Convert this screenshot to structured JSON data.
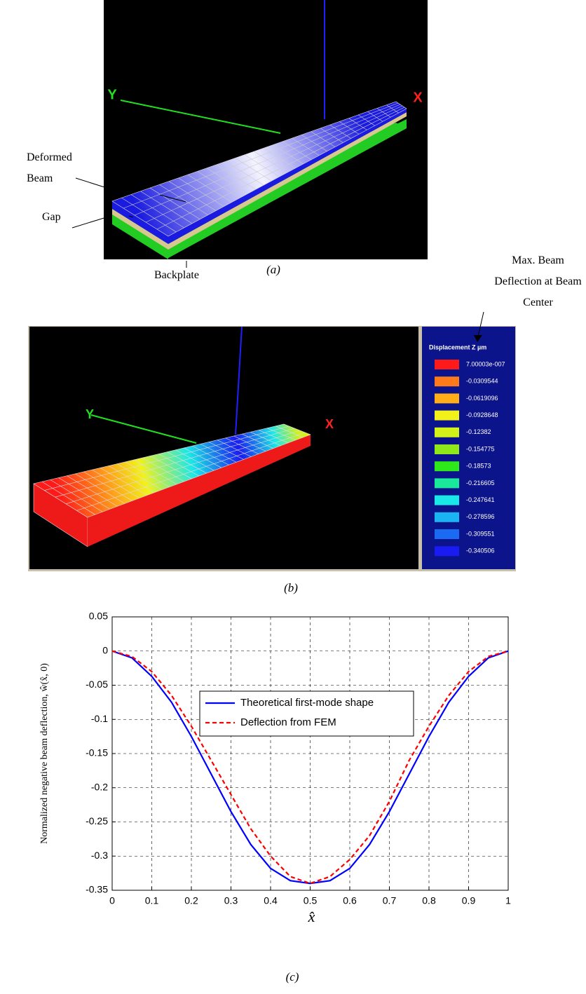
{
  "panel_a": {
    "axis_y": "Y",
    "axis_x": "X",
    "label_beam": "Deformed Beam",
    "label_gap": "Gap",
    "label_backplate": "Backplate",
    "caption": "(a)"
  },
  "panel_b": {
    "annotation": "Max. Beam Deflection at Beam Center",
    "axis_y": "Y",
    "axis_x": "X",
    "legend_title": "Displacement Z µm",
    "legend": [
      {
        "label": "7.00003e-007",
        "color": "#ff1a1a"
      },
      {
        "label": "-0.0309544",
        "color": "#ff7a1a"
      },
      {
        "label": "-0.0619096",
        "color": "#ffae1a"
      },
      {
        "label": "-0.0928648",
        "color": "#f2f21a"
      },
      {
        "label": "-0.12382",
        "color": "#d2f21a"
      },
      {
        "label": "-0.154775",
        "color": "#8ee81a"
      },
      {
        "label": "-0.18573",
        "color": "#2ee81a"
      },
      {
        "label": "-0.216605",
        "color": "#1ae89a"
      },
      {
        "label": "-0.247641",
        "color": "#1ae8e8"
      },
      {
        "label": "-0.278596",
        "color": "#1ab4f2"
      },
      {
        "label": "-0.309551",
        "color": "#1a6af2"
      },
      {
        "label": "-0.340506",
        "color": "#1a1af2"
      }
    ],
    "caption": "(b)"
  },
  "chart_data": {
    "type": "line",
    "x_label": "x̂",
    "y_label": "Normalized negative beam deflection, ŵ(x̂, 0)",
    "caption": "(c)",
    "x": [
      0,
      0.05,
      0.1,
      0.15,
      0.2,
      0.25,
      0.3,
      0.35,
      0.4,
      0.45,
      0.5,
      0.55,
      0.6,
      0.65,
      0.7,
      0.75,
      0.8,
      0.85,
      0.9,
      0.95,
      1
    ],
    "series": [
      {
        "name": "Theoretical first-mode shape",
        "color": "#0000ff",
        "dash": false,
        "values": [
          0,
          -0.01,
          -0.037,
          -0.075,
          -0.125,
          -0.18,
          -0.235,
          -0.283,
          -0.318,
          -0.336,
          -0.34,
          -0.336,
          -0.318,
          -0.283,
          -0.235,
          -0.18,
          -0.125,
          -0.075,
          -0.037,
          -0.01,
          0
        ]
      },
      {
        "name": "Deflection from FEM",
        "color": "#ff0000",
        "dash": true,
        "values": [
          0,
          -0.008,
          -0.03,
          -0.065,
          -0.11,
          -0.16,
          -0.21,
          -0.26,
          -0.3,
          -0.33,
          -0.34,
          -0.33,
          -0.305,
          -0.27,
          -0.22,
          -0.16,
          -0.11,
          -0.065,
          -0.03,
          -0.008,
          0
        ]
      }
    ],
    "xlim": [
      0,
      1
    ],
    "ylim": [
      -0.35,
      0.05
    ],
    "xticks": [
      0,
      0.1,
      0.2,
      0.3,
      0.4,
      0.5,
      0.6,
      0.7,
      0.8,
      0.9,
      1
    ],
    "yticks": [
      0.05,
      0,
      -0.05,
      -0.1,
      -0.15,
      -0.2,
      -0.25,
      -0.3,
      -0.35
    ],
    "grid": true,
    "legend_position": "upper center"
  }
}
